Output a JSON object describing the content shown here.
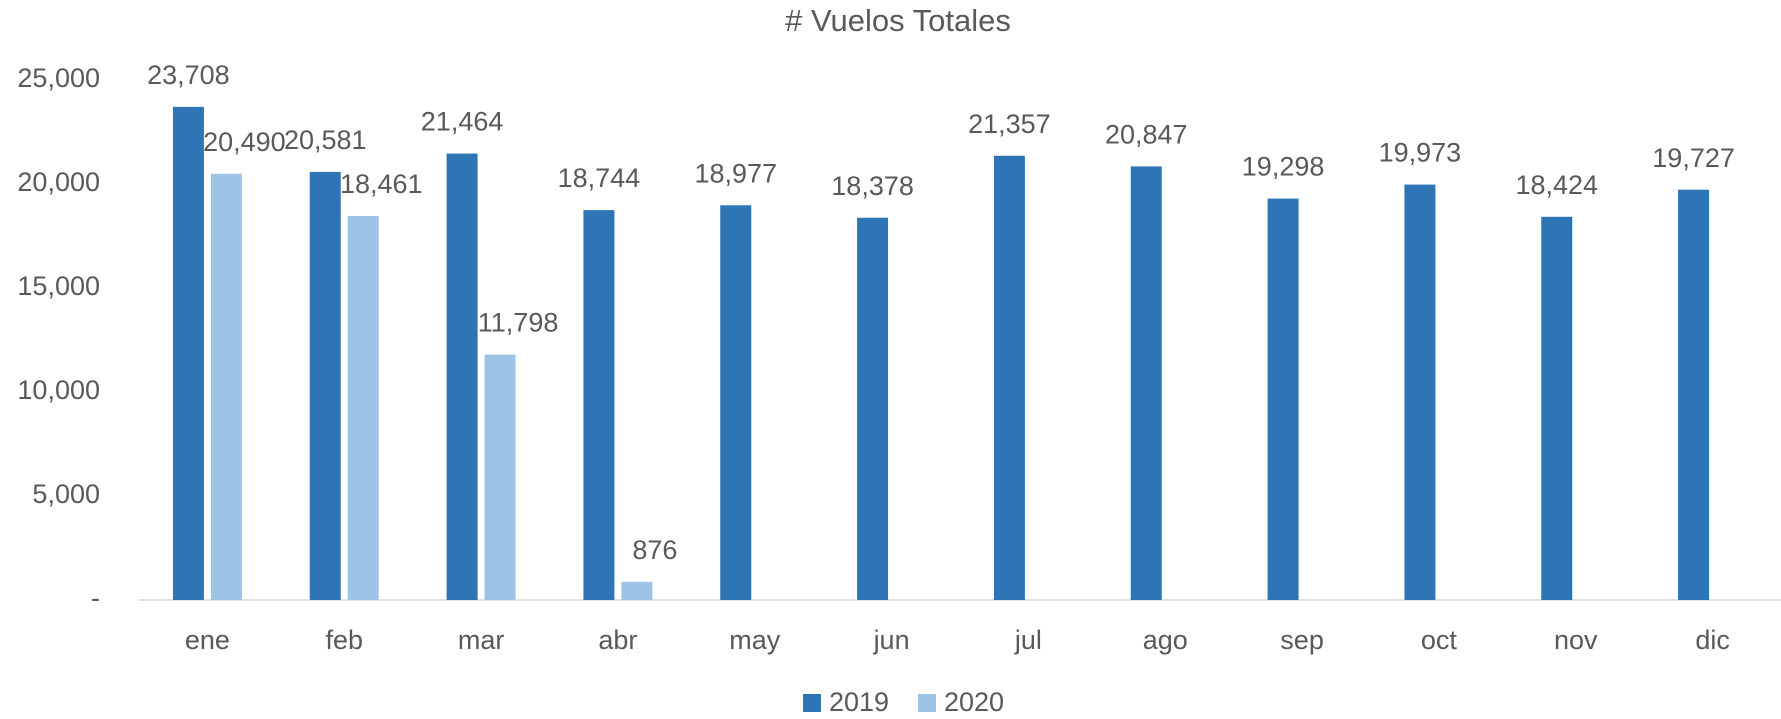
{
  "chart_data": {
    "type": "bar",
    "title": "# Vuelos Totales",
    "categories": [
      "ene",
      "feb",
      "mar",
      "abr",
      "may",
      "jun",
      "jul",
      "ago",
      "sep",
      "oct",
      "nov",
      "dic"
    ],
    "series": [
      {
        "name": "2019",
        "color": "#2e75b6",
        "values": [
          23708,
          20581,
          21464,
          18744,
          18977,
          18378,
          21357,
          20847,
          19298,
          19973,
          18424,
          19727
        ],
        "value_labels": [
          "23,708",
          "20,581",
          "21,464",
          "18,744",
          "18,977",
          "18,378",
          "21,357",
          "20,847",
          "19,298",
          "19,973",
          "18,424",
          "19,727"
        ]
      },
      {
        "name": "2020",
        "color": "#9dc3e6",
        "values": [
          20490,
          18461,
          11798,
          876,
          null,
          null,
          null,
          null,
          null,
          null,
          null,
          null
        ],
        "value_labels": [
          "20,490",
          "18,461",
          "11,798",
          "876",
          null,
          null,
          null,
          null,
          null,
          null,
          null,
          null
        ]
      }
    ],
    "ylim": [
      0,
      25000
    ],
    "yticks": [
      {
        "value": 0,
        "label": "-"
      },
      {
        "value": 5000,
        "label": "5,000"
      },
      {
        "value": 10000,
        "label": "10,000"
      },
      {
        "value": 15000,
        "label": "15,000"
      },
      {
        "value": 20000,
        "label": "20,000"
      },
      {
        "value": 25000,
        "label": "25,000"
      }
    ],
    "grid": false,
    "legend": "bottom"
  }
}
